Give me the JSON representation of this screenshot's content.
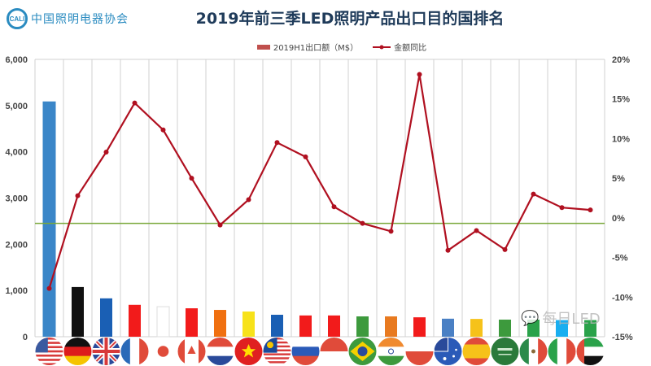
{
  "logo": {
    "mark": "CALI",
    "text": "中国照明电器协会"
  },
  "title": "2019年前三季LED照明产品出口目的国排名",
  "chart_data": {
    "type": "bar+line",
    "title": "2019年前三季LED照明产品出口目的国排名",
    "categories": [
      "us-flag",
      "germany-flag",
      "uk-flag",
      "france-flag",
      "japan-flag",
      "canada-flag",
      "netherlands-flag",
      "vietnam-flag",
      "malaysia-flag",
      "russia-flag",
      "singapore-flag",
      "brazil-flag",
      "india-flag",
      "poland-flag",
      "australia-flag",
      "spain-flag",
      "saudi-arabia-flag",
      "mexico-flag",
      "italy-flag",
      "uae-flag"
    ],
    "series": [
      {
        "name": "2019H1出口额（M$）",
        "type": "bar",
        "axis": "left",
        "values": [
          5090,
          1075,
          830,
          690,
          650,
          615,
          580,
          545,
          475,
          460,
          460,
          440,
          440,
          420,
          390,
          385,
          370,
          370,
          360,
          360
        ],
        "colors": [
          "#3a86c8",
          "#111111",
          "#1a5fb4",
          "#f21b1b",
          "#ffffff",
          "#f21b1b",
          "#f07010",
          "#f7e21a",
          "#1a5fb4",
          "#f21b1b",
          "#f21b1b",
          "#3d9a3d",
          "#e87a20",
          "#f21b1b",
          "#4a80c4",
          "#f6c21a",
          "#3d9a3d",
          "#2aa24a",
          "#1aaef0",
          "#2aa24a"
        ]
      },
      {
        "name": "金额同比",
        "type": "line",
        "axis": "right",
        "color": "#b01020",
        "values": [
          -8.9,
          2.8,
          8.3,
          14.5,
          11.1,
          5.0,
          -0.9,
          2.3,
          9.5,
          7.7,
          1.4,
          -0.7,
          -1.7,
          18.1,
          -4.1,
          -1.6,
          -4.0,
          3.0,
          1.3,
          1.0
        ]
      }
    ],
    "reference_line": {
      "axis": "right",
      "value": -0.7,
      "color": "#7aa83a"
    },
    "left_axis": {
      "range": [
        0,
        6000
      ],
      "ticks": [
        "0",
        "1,000",
        "2,000",
        "3,000",
        "4,000",
        "5,000",
        "6,000"
      ]
    },
    "right_axis": {
      "range": [
        -15,
        20
      ],
      "ticks": [
        "-15%",
        "-10%",
        "-5%",
        "0%",
        "5%",
        "10%",
        "15%",
        "20%"
      ]
    },
    "grid": "vertical",
    "legend": "top-center"
  },
  "watermark": "每日LED"
}
